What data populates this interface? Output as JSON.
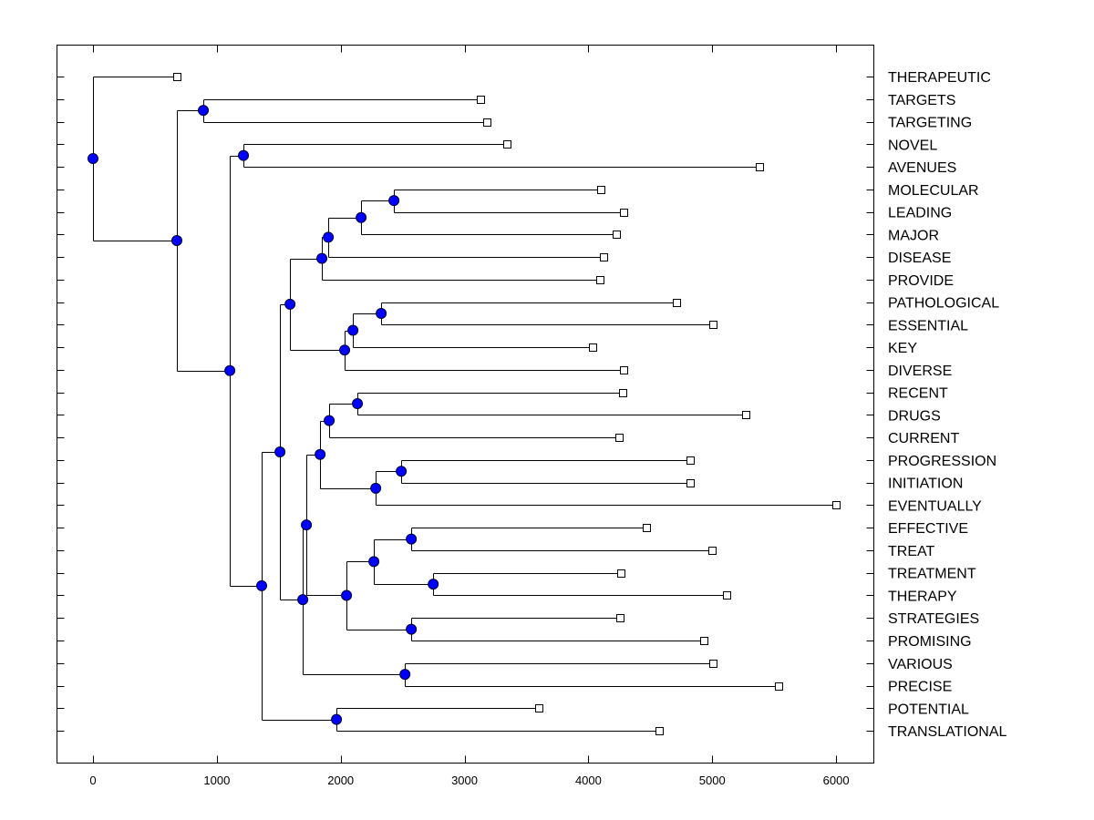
{
  "chart_data": {
    "type": "dendrogram",
    "orientation": "horizontal",
    "title": "",
    "xlabel": "",
    "ylabel": "",
    "xlim": [
      -300,
      6300
    ],
    "x_ticks": [
      0,
      1000,
      2000,
      3000,
      4000,
      5000,
      6000
    ],
    "x_tick_labels": [
      "0",
      "1000",
      "2000",
      "3000",
      "4000",
      "5000",
      "6000"
    ],
    "grid": false,
    "node_color": "#0000ff",
    "line_color": "#000000",
    "leaves": [
      {
        "label": "THERAPEUTIC",
        "value": 677
      },
      {
        "label": "TARGETS",
        "value": 3130
      },
      {
        "label": "TARGETING",
        "value": 3181
      },
      {
        "label": "NOVEL",
        "value": 3343
      },
      {
        "label": "AVENUES",
        "value": 5383
      },
      {
        "label": "MOLECULAR",
        "value": 4102
      },
      {
        "label": "LEADING",
        "value": 4286
      },
      {
        "label": "MAJOR",
        "value": 4227
      },
      {
        "label": "DISEASE",
        "value": 4124
      },
      {
        "label": "PROVIDE",
        "value": 4094
      },
      {
        "label": "PATHOLOGICAL",
        "value": 4713
      },
      {
        "label": "ESSENTIAL",
        "value": 5007
      },
      {
        "label": "KEY",
        "value": 4035
      },
      {
        "label": "DIVERSE",
        "value": 4286
      },
      {
        "label": "RECENT",
        "value": 4278
      },
      {
        "label": "DRUGS",
        "value": 5272
      },
      {
        "label": "CURRENT",
        "value": 4249
      },
      {
        "label": "PROGRESSION",
        "value": 4823
      },
      {
        "label": "INITIATION",
        "value": 4823
      },
      {
        "label": "EVENTUALLY",
        "value": 6001
      },
      {
        "label": "EFFECTIVE",
        "value": 4470
      },
      {
        "label": "TREAT",
        "value": 5000
      },
      {
        "label": "TREATMENT",
        "value": 4264
      },
      {
        "label": "THERAPY",
        "value": 5118
      },
      {
        "label": "STRATEGIES",
        "value": 4256
      },
      {
        "label": "PROMISING",
        "value": 4934
      },
      {
        "label": "VARIOUS",
        "value": 5007
      },
      {
        "label": "PRECISE",
        "value": 5538
      },
      {
        "label": "POTENTIAL",
        "value": 3601
      },
      {
        "label": "TRANSLATIONAL",
        "value": 4573
      }
    ],
    "nodes": [
      {
        "id": "root",
        "value": 0,
        "children": [
          "L:0",
          "A"
        ]
      },
      {
        "id": "A",
        "value": 677,
        "children": [
          "B",
          "C"
        ]
      },
      {
        "id": "B",
        "value": 891,
        "children": [
          "L:1",
          "L:2"
        ]
      },
      {
        "id": "C",
        "value": 1105,
        "children": [
          "D",
          "E"
        ]
      },
      {
        "id": "D",
        "value": 1215,
        "children": [
          "L:3",
          "L:4"
        ]
      },
      {
        "id": "E",
        "value": 1362,
        "children": [
          "F",
          "G"
        ]
      },
      {
        "id": "G",
        "value": 1966,
        "children": [
          "L:28",
          "L:29"
        ]
      },
      {
        "id": "F",
        "value": 1510,
        "children": [
          "H",
          "I"
        ]
      },
      {
        "id": "H",
        "value": 1591,
        "children": [
          "J",
          "K"
        ]
      },
      {
        "id": "J",
        "value": 1848,
        "children": [
          "Lnode",
          "L:9"
        ]
      },
      {
        "id": "Lnode",
        "value": 1900,
        "children": [
          "M",
          "L:8"
        ]
      },
      {
        "id": "M",
        "value": 2165,
        "children": [
          "N",
          "L:7"
        ]
      },
      {
        "id": "N",
        "value": 2430,
        "children": [
          "L:5",
          "L:6"
        ]
      },
      {
        "id": "K",
        "value": 2032,
        "children": [
          "O",
          "L:13"
        ]
      },
      {
        "id": "O",
        "value": 2099,
        "children": [
          "P",
          "L:12"
        ]
      },
      {
        "id": "P",
        "value": 2327,
        "children": [
          "L:10",
          "L:11"
        ]
      },
      {
        "id": "I",
        "value": 1694,
        "children": [
          "Q",
          "R"
        ]
      },
      {
        "id": "Q",
        "value": 1723,
        "children": [
          "S",
          "T"
        ]
      },
      {
        "id": "S",
        "value": 1834,
        "children": [
          "U",
          "V"
        ]
      },
      {
        "id": "U",
        "value": 1907,
        "children": [
          "W",
          "L:16"
        ]
      },
      {
        "id": "W",
        "value": 2135,
        "children": [
          "L:14",
          "L:15"
        ]
      },
      {
        "id": "V",
        "value": 2283,
        "children": [
          "X",
          "L:19"
        ]
      },
      {
        "id": "X",
        "value": 2489,
        "children": [
          "L:17",
          "L:18"
        ]
      },
      {
        "id": "T",
        "value": 2047,
        "children": [
          "Y",
          "Z"
        ]
      },
      {
        "id": "Y",
        "value": 2268,
        "children": [
          "AA",
          "AB"
        ]
      },
      {
        "id": "AA",
        "value": 2570,
        "children": [
          "L:20",
          "L:21"
        ]
      },
      {
        "id": "AB",
        "value": 2747,
        "children": [
          "L:22",
          "L:23"
        ]
      },
      {
        "id": "Z",
        "value": 2570,
        "children": [
          "L:24",
          "L:25"
        ]
      },
      {
        "id": "R",
        "value": 2519,
        "children": [
          "L:26",
          "L:27"
        ]
      }
    ]
  }
}
